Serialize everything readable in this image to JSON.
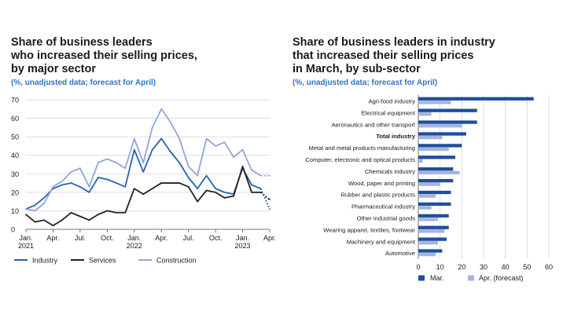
{
  "chart_data": [
    {
      "type": "line",
      "title": "Share of business leaders who increased their selling prices, by major sector",
      "title_lines": [
        "Share of business leaders",
        "who increased their selling prices,",
        "by major sector"
      ],
      "subtitle": "(%, unadjusted data; forecast for April)",
      "ylim": [
        0,
        70
      ],
      "yticks": [
        "0",
        "10",
        "20",
        "30",
        "40",
        "50",
        "60",
        "70"
      ],
      "x_count": 28,
      "xticks": [
        {
          "i": 0,
          "line1": "Jan.",
          "line2": "2021"
        },
        {
          "i": 3,
          "line1": "Apr.",
          "line2": ""
        },
        {
          "i": 6,
          "line1": "Jul.",
          "line2": ""
        },
        {
          "i": 9,
          "line1": "Oct.",
          "line2": ""
        },
        {
          "i": 12,
          "line1": "Jan.",
          "line2": "2022"
        },
        {
          "i": 15,
          "line1": "Apr.",
          "line2": ""
        },
        {
          "i": 18,
          "line1": "Jul.",
          "line2": ""
        },
        {
          "i": 21,
          "line1": "Oct.",
          "line2": ""
        },
        {
          "i": 24,
          "line1": "Jan.",
          "line2": "2023"
        },
        {
          "i": 27,
          "line1": "Apr.",
          "line2": ""
        }
      ],
      "forecast_index": 27,
      "series": [
        {
          "name": "Industry",
          "color": "#2563b5",
          "values": [
            11,
            13,
            17,
            22,
            24,
            25,
            23,
            20,
            28,
            27,
            25,
            23,
            43,
            31,
            43,
            49,
            42,
            36,
            28,
            22,
            29,
            22,
            20,
            19,
            33,
            24,
            22,
            11
          ]
        },
        {
          "name": "Services",
          "color": "#222222",
          "values": [
            8,
            4,
            5,
            2,
            5,
            9,
            7,
            5,
            8,
            10,
            9,
            9,
            22,
            19,
            22,
            25,
            25,
            25,
            23,
            15,
            21,
            20,
            17,
            18,
            34,
            20,
            20,
            16
          ]
        },
        {
          "name": "Construction",
          "color": "#8fa6d8",
          "values": [
            11,
            10,
            14,
            23,
            26,
            31,
            33,
            23,
            36,
            38,
            36,
            33,
            49,
            36,
            55,
            65,
            58,
            49,
            34,
            29,
            49,
            45,
            47,
            39,
            43,
            32,
            29,
            29
          ]
        }
      ]
    },
    {
      "type": "bar",
      "orientation": "horizontal",
      "title": "Share of business leaders in industry that increased their selling prices in March, by sub-sector",
      "title_lines": [
        "Share of business leaders in industry",
        "that increased their selling prices",
        "in March, by sub-sector"
      ],
      "subtitle": "(%, unadjusted data; forecast for April)",
      "xlim": [
        0,
        60
      ],
      "xticks": [
        "0",
        "10",
        "20",
        "30",
        "40",
        "50",
        "60"
      ],
      "categories": [
        "Agri-food industry",
        "Electrical equipment",
        "Aeronautics and other transport",
        "Total industry",
        "Metal and metal products manufacturing",
        "Computer, electronic and optical products",
        "Chemicals industry",
        "Wood, paper and printing",
        "Rubber and plastic products",
        "Pharmaceutical industry",
        "Other industrial goods",
        "Wearing apparel, textiles, footwear",
        "Machinery and equipment",
        "Automotive"
      ],
      "bold_category": "Total industry",
      "series": [
        {
          "name": "Mar.",
          "color": "#1f4e9c",
          "values": [
            53,
            27,
            27,
            22,
            20,
            17,
            16,
            16,
            15,
            15,
            14,
            14,
            13,
            11
          ]
        },
        {
          "name": "Apr. (forecast)",
          "color": "#a4b4de",
          "values": [
            15,
            6,
            20,
            11,
            14,
            2,
            19,
            10,
            8,
            6,
            9,
            12,
            9,
            8
          ]
        }
      ]
    }
  ]
}
